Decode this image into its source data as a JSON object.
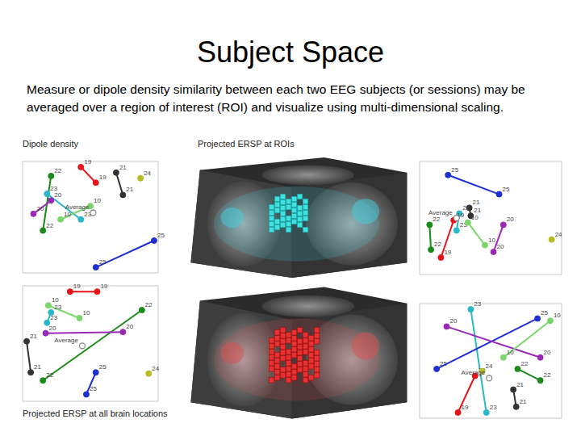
{
  "title": "Subject Space",
  "text": "Measure or dipole density similarity between each two EEG subjects (or sessions) may be averaged over a region of interest (ROI) and visualize using multi-dimensional scaling.",
  "captions": [
    "Dipole density",
    "Projected ERSP at ROIs",
    "Projected ERSP at all brain locations"
  ],
  "chart_data": [
    {
      "type": "scatter",
      "xlim": [
        0,
        100
      ],
      "ylim": [
        0,
        100
      ],
      "tick_labels": false,
      "series": [
        {
          "name": "19",
          "color": "#e8121a",
          "marker": "circle",
          "line_style": "solid",
          "x": [
            43,
            54
          ],
          "y": [
            95,
            81
          ]
        },
        {
          "name": "21",
          "color": "#333333",
          "marker": "circle",
          "line_style": "solid",
          "x": [
            69,
            74
          ],
          "y": [
            90,
            70
          ]
        },
        {
          "name": "24",
          "color": "#b5bd22",
          "marker": "circle",
          "x": [
            87
          ],
          "y": [
            85
          ]
        },
        {
          "name": "22",
          "color": "#1a8a1a",
          "marker": "circle",
          "line_style": "solid",
          "x": [
            21,
            15
          ],
          "y": [
            87,
            38
          ]
        },
        {
          "name": "23",
          "color": "#2ab7c9",
          "marker": "circle",
          "line_style": "solid",
          "x": [
            18,
            43
          ],
          "y": [
            71,
            48
          ]
        },
        {
          "name": "20",
          "color": "#9b29b8",
          "marker": "circle",
          "line_style": "solid",
          "x": [
            21,
            8
          ],
          "y": [
            65,
            53
          ]
        },
        {
          "name": "10",
          "color": "#7ad66a",
          "marker": "circle",
          "line_style": "solid",
          "x": [
            50,
            28
          ],
          "y": [
            60,
            48
          ]
        },
        {
          "name": "Average",
          "color": "#888888",
          "marker": "open_circle",
          "x": [
            52
          ],
          "y": [
            54
          ]
        },
        {
          "name": "25",
          "color": "#1f2fd0",
          "marker": "circle",
          "line_style": "solid",
          "x": [
            97,
            54
          ],
          "y": [
            29,
            5
          ]
        }
      ]
    },
    {
      "type": "scatter",
      "xlim": [
        0,
        100
      ],
      "ylim": [
        0,
        100
      ],
      "tick_labels": false,
      "series": [
        {
          "name": "25",
          "color": "#1f2fd0",
          "marker": "circle",
          "line_style": "solid",
          "x": [
            20,
            56
          ],
          "y": [
            88,
            71
          ]
        },
        {
          "name": "21",
          "color": "#333333",
          "marker": "circle",
          "line_style": "solid",
          "x": [
            35,
            36
          ],
          "y": [
            59,
            52
          ]
        },
        {
          "name": "23",
          "color": "#2ab7c9",
          "marker": "circle",
          "line_style": "solid",
          "x": [
            28,
            26
          ],
          "y": [
            54,
            39
          ]
        },
        {
          "name": "10",
          "color": "#7ad66a",
          "marker": "circle",
          "line_style": "solid",
          "x": [
            34,
            46
          ],
          "y": [
            46,
            26
          ]
        },
        {
          "name": "19",
          "color": "#e8121a",
          "marker": "circle",
          "line_style": "solid",
          "x": [
            24,
            15
          ],
          "y": [
            48,
            15
          ]
        },
        {
          "name": "22",
          "color": "#1a8a1a",
          "marker": "circle",
          "line_style": "solid",
          "x": [
            7,
            8
          ],
          "y": [
            44,
            22
          ]
        },
        {
          "name": "20",
          "color": "#9b29b8",
          "marker": "circle",
          "line_style": "solid",
          "x": [
            59,
            52
          ],
          "y": [
            44,
            20
          ]
        },
        {
          "name": "24",
          "color": "#b5bd22",
          "marker": "circle",
          "x": [
            93
          ],
          "y": [
            31
          ]
        },
        {
          "name": "Average",
          "color": "#888888",
          "marker": "open_circle",
          "x": [
            26
          ],
          "y": [
            50
          ]
        }
      ]
    },
    {
      "type": "scatter",
      "xlim": [
        0,
        100
      ],
      "ylim": [
        0,
        100
      ],
      "tick_labels": false,
      "series": [
        {
          "name": "19",
          "color": "#e8121a",
          "marker": "circle",
          "line_style": "solid",
          "x": [
            35,
            55
          ],
          "y": [
            95,
            95
          ]
        },
        {
          "name": "10",
          "color": "#7ad66a",
          "marker": "circle",
          "line_style": "solid",
          "x": [
            19,
            42
          ],
          "y": [
            83,
            72
          ]
        },
        {
          "name": "23",
          "color": "#2ab7c9",
          "marker": "circle",
          "line_style": "solid",
          "x": [
            21,
            18
          ],
          "y": [
            77,
            68
          ]
        },
        {
          "name": "22",
          "color": "#1a8a1a",
          "marker": "circle",
          "line_style": "solid",
          "x": [
            88,
            15
          ],
          "y": [
            79,
            18
          ]
        },
        {
          "name": "20",
          "color": "#9b29b8",
          "marker": "circle",
          "line_style": "solid",
          "x": [
            17,
            74
          ],
          "y": [
            59,
            60
          ]
        },
        {
          "name": "21",
          "color": "#333333",
          "marker": "circle",
          "line_style": "solid",
          "x": [
            3,
            6
          ],
          "y": [
            52,
            25
          ]
        },
        {
          "name": "Average",
          "color": "#888888",
          "marker": "open_circle",
          "x": [
            44
          ],
          "y": [
            48
          ]
        },
        {
          "name": "25",
          "color": "#1f2fd0",
          "marker": "circle",
          "line_style": "solid",
          "x": [
            54,
            47
          ],
          "y": [
            25,
            6
          ]
        },
        {
          "name": "24",
          "color": "#b5bd22",
          "marker": "circle",
          "x": [
            93
          ],
          "y": [
            24
          ]
        }
      ]
    },
    {
      "type": "scatter",
      "xlim": [
        0,
        100
      ],
      "ylim": [
        0,
        100
      ],
      "tick_labels": false,
      "series": [
        {
          "name": "23",
          "color": "#2ab7c9",
          "marker": "circle",
          "line_style": "solid",
          "x": [
            36,
            47
          ],
          "y": [
            95,
            5
          ]
        },
        {
          "name": "25",
          "color": "#1f2fd0",
          "marker": "circle",
          "line_style": "solid",
          "x": [
            83,
            12
          ],
          "y": [
            87,
            43
          ]
        },
        {
          "name": "20",
          "color": "#9b29b8",
          "marker": "circle",
          "line_style": "solid",
          "x": [
            19,
            85
          ],
          "y": [
            80,
            53
          ]
        },
        {
          "name": "10",
          "color": "#7ad66a",
          "marker": "circle",
          "line_style": "solid",
          "x": [
            92,
            59
          ],
          "y": [
            85,
            53
          ]
        },
        {
          "name": "22",
          "color": "#1a8a1a",
          "marker": "circle",
          "line_style": "solid",
          "x": [
            69,
            85
          ],
          "y": [
            43,
            33
          ]
        },
        {
          "name": "19",
          "color": "#e8121a",
          "marker": "circle",
          "line_style": "solid",
          "x": [
            39,
            27
          ],
          "y": [
            37,
            5
          ]
        },
        {
          "name": "24",
          "color": "#b5bd22",
          "marker": "circle",
          "x": [
            44
          ],
          "y": [
            41
          ]
        },
        {
          "name": "Average",
          "color": "#888888",
          "marker": "open_circle",
          "x": [
            49
          ],
          "y": [
            35
          ]
        },
        {
          "name": "21",
          "color": "#333333",
          "marker": "circle",
          "line_style": "solid",
          "x": [
            66,
            68
          ],
          "y": [
            25,
            10
          ]
        }
      ]
    }
  ]
}
